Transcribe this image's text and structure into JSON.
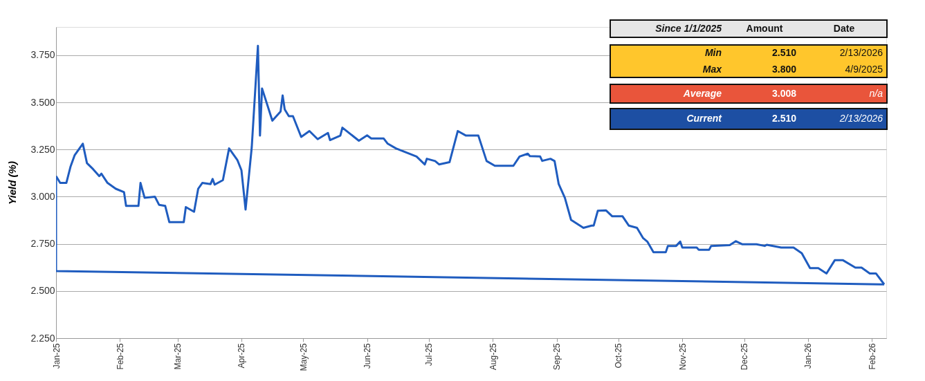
{
  "chart_data": {
    "type": "line",
    "ylabel": "Yield (%)",
    "x": [
      "2025-01-01",
      "2025-01-03",
      "2025-01-06",
      "2025-01-08",
      "2025-01-10",
      "2025-01-14",
      "2025-01-16",
      "2025-01-19",
      "2025-01-22",
      "2025-01-23",
      "2025-01-26",
      "2025-01-30",
      "2025-02-03",
      "2025-02-04",
      "2025-02-10",
      "2025-02-11",
      "2025-02-13",
      "2025-02-18",
      "2025-02-20",
      "2025-02-23",
      "2025-02-25",
      "2025-03-04",
      "2025-03-05",
      "2025-03-09",
      "2025-03-11",
      "2025-03-13",
      "2025-03-17",
      "2025-03-18",
      "2025-03-19",
      "2025-03-23",
      "2025-03-26",
      "2025-03-30",
      "2025-04-01",
      "2025-04-03",
      "2025-04-06",
      "2025-04-09",
      "2025-04-10",
      "2025-04-11",
      "2025-04-16",
      "2025-04-20",
      "2025-04-21",
      "2025-04-22",
      "2025-04-24",
      "2025-04-26",
      "2025-04-30",
      "2025-05-04",
      "2025-05-08",
      "2025-05-13",
      "2025-05-14",
      "2025-05-19",
      "2025-05-20",
      "2025-05-28",
      "2025-06-01",
      "2025-06-03",
      "2025-06-09",
      "2025-06-11",
      "2025-06-15",
      "2025-06-25",
      "2025-06-29",
      "2025-06-30",
      "2025-07-04",
      "2025-07-06",
      "2025-07-11",
      "2025-07-15",
      "2025-07-19",
      "2025-07-25",
      "2025-07-29",
      "2025-08-02",
      "2025-08-11",
      "2025-08-14",
      "2025-08-18",
      "2025-08-19",
      "2025-08-24",
      "2025-08-25",
      "2025-08-29",
      "2025-08-31",
      "2025-09-02",
      "2025-09-05",
      "2025-09-08",
      "2025-09-14",
      "2025-09-18",
      "2025-09-19",
      "2025-09-21",
      "2025-09-25",
      "2025-09-28",
      "2025-10-03",
      "2025-10-06",
      "2025-10-10",
      "2025-10-13",
      "2025-10-15",
      "2025-10-18",
      "2025-10-24",
      "2025-10-25",
      "2025-10-29",
      "2025-10-31",
      "2025-11-01",
      "2025-11-08",
      "2025-11-09",
      "2025-11-14",
      "2025-11-15",
      "2025-11-24",
      "2025-11-27",
      "2025-11-30",
      "2025-12-07",
      "2025-12-11",
      "2025-12-12",
      "2025-12-19",
      "2025-12-25",
      "2025-12-29",
      "2026-01-02",
      "2026-01-06",
      "2026-01-10",
      "2026-01-14",
      "2026-01-18",
      "2026-01-24",
      "2026-01-27",
      "2026-01-31",
      "2026-02-03",
      "2026-02-07"
    ],
    "series": [
      {
        "x": [
          "2025-01-01",
          "2025-01-01",
          "2026-02-07"
        ],
        "color": "#1f5cbf",
        "values": [
          3.109,
          2.606,
          2.535
        ]
      },
      {
        "color": "#1f5cbf",
        "values": [
          3.109,
          3.073,
          3.073,
          3.158,
          3.219,
          3.281,
          3.178,
          3.146,
          3.109,
          3.122,
          3.073,
          3.042,
          3.024,
          2.951,
          2.951,
          3.073,
          2.994,
          3.0,
          2.957,
          2.951,
          2.865,
          2.865,
          2.945,
          2.92,
          3.042,
          3.073,
          3.067,
          3.094,
          3.064,
          3.088,
          3.256,
          3.195,
          3.14,
          2.932,
          3.262,
          3.8,
          3.324,
          3.574,
          3.403,
          3.452,
          3.537,
          3.463,
          3.427,
          3.427,
          3.317,
          3.348,
          3.305,
          3.338,
          3.3,
          3.324,
          3.366,
          3.297,
          3.325,
          3.309,
          3.309,
          3.281,
          3.256,
          3.213,
          3.171,
          3.201,
          3.189,
          3.171,
          3.183,
          3.348,
          3.324,
          3.324,
          3.189,
          3.164,
          3.164,
          3.213,
          3.228,
          3.215,
          3.213,
          3.19,
          3.201,
          3.189,
          3.067,
          2.994,
          2.877,
          2.835,
          2.847,
          2.847,
          2.926,
          2.927,
          2.896,
          2.896,
          2.847,
          2.835,
          2.78,
          2.762,
          2.706,
          2.706,
          2.739,
          2.739,
          2.762,
          2.73,
          2.73,
          2.718,
          2.718,
          2.739,
          2.743,
          2.764,
          2.748,
          2.748,
          2.739,
          2.745,
          2.73,
          2.73,
          2.7,
          2.621,
          2.621,
          2.593,
          2.663,
          2.663,
          2.624,
          2.624,
          2.593,
          2.593,
          2.535
        ]
      }
    ],
    "xlim": [
      "2025-01-01",
      "2026-02-08"
    ],
    "xticks": [
      {
        "value": "2025-01-01",
        "label": "Jan-25"
      },
      {
        "value": "2025-02-01",
        "label": "Feb-25"
      },
      {
        "value": "2025-03-01",
        "label": "Mar-25"
      },
      {
        "value": "2025-04-01",
        "label": "Apr-25"
      },
      {
        "value": "2025-05-01",
        "label": "May-25"
      },
      {
        "value": "2025-06-01",
        "label": "Jun-25"
      },
      {
        "value": "2025-07-01",
        "label": "Jul-25"
      },
      {
        "value": "2025-08-01",
        "label": "Aug-25"
      },
      {
        "value": "2025-09-01",
        "label": "Sep-25"
      },
      {
        "value": "2025-10-01",
        "label": "Oct-25"
      },
      {
        "value": "2025-11-01",
        "label": "Nov-25"
      },
      {
        "value": "2025-12-01",
        "label": "Dec-25"
      },
      {
        "value": "2026-01-01",
        "label": "Jan-26"
      },
      {
        "value": "2026-02-01",
        "label": "Feb-26"
      }
    ],
    "ylim": [
      2.25,
      3.9
    ],
    "yticks": [
      {
        "value": 2.25,
        "label": "2.250"
      },
      {
        "value": 2.5,
        "label": "2.500"
      },
      {
        "value": 2.75,
        "label": "2.750"
      },
      {
        "value": 3.0,
        "label": "3.000"
      },
      {
        "value": 3.25,
        "label": "3.250"
      },
      {
        "value": 3.5,
        "label": "3.500"
      },
      {
        "value": 3.75,
        "label": "3.750"
      }
    ],
    "grid": "y",
    "annotations": [
      "Since 1/1/2025",
      "Amount",
      "Date",
      "Min",
      "2.510",
      "2/13/2026",
      "Max",
      "3.800",
      "4/9/2025",
      "Average",
      "3.008",
      "n/a",
      "Current",
      "2.510",
      "2/13/2026"
    ]
  }
}
